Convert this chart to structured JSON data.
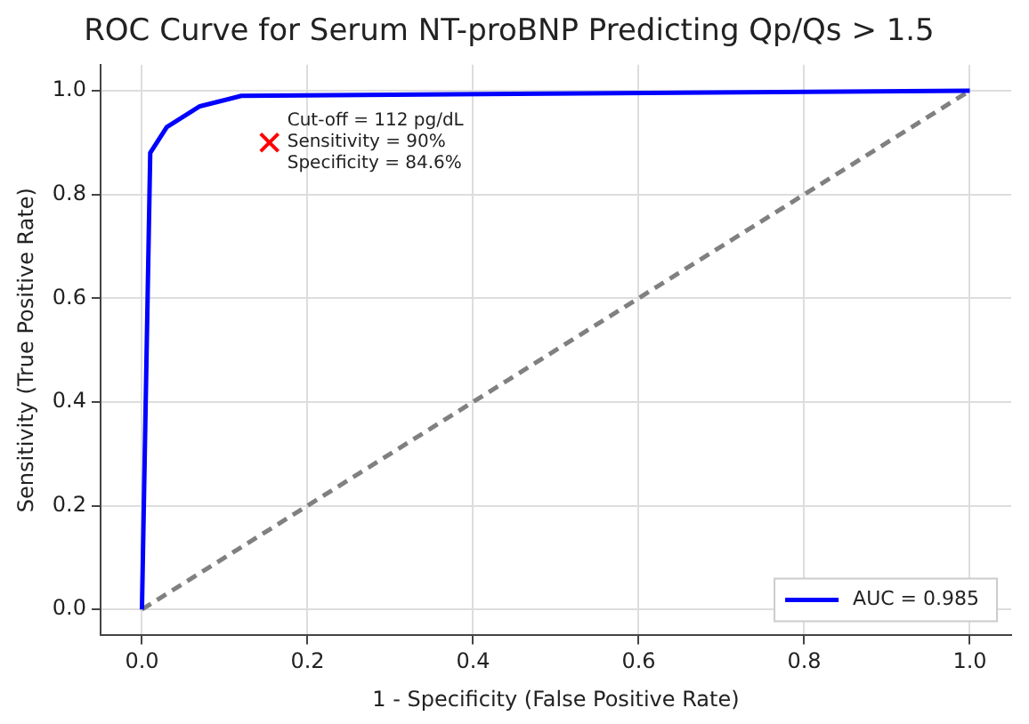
{
  "chart_data": {
    "type": "line",
    "title": "ROC Curve for Serum NT-proBNP Predicting Qp/Qs > 1.5",
    "xlabel": "1 - Specificity (False Positive Rate)",
    "ylabel": "Sensitivity (True Positive Rate)",
    "xlim": [
      -0.05,
      1.05
    ],
    "ylim": [
      -0.05,
      1.05
    ],
    "xticks": [
      {
        "value": 0,
        "label": "0.0"
      },
      0.2,
      0.4,
      0.6,
      0.8,
      {
        "value": 1,
        "label": "1.0"
      }
    ],
    "yticks": [
      {
        "value": 0,
        "label": "0.0"
      },
      0.2,
      0.4,
      0.6,
      0.8,
      {
        "value": 1,
        "label": "1.0"
      }
    ],
    "grid": true,
    "legend": "bottom right",
    "series": [
      {
        "name": "AUC = 0.985",
        "color": "#0000ff",
        "line_style": "solid",
        "marker": "none",
        "x": [
          0,
          0.01,
          0.03,
          0.07,
          0.12,
          1.0
        ],
        "values": [
          0,
          0.88,
          0.93,
          0.97,
          0.99,
          1.0
        ]
      },
      {
        "color": "#808080",
        "line_style": "dashed",
        "marker": "none",
        "x": [
          0,
          1
        ],
        "values": [
          0,
          1
        ]
      },
      {
        "type": "scatter",
        "color": "#ff0000",
        "marker": "cross",
        "x": [
          0.154
        ],
        "values": [
          0.9
        ]
      }
    ],
    "annotations": [
      {
        "text": "Cut-off = 112 pg/dL\nSensitivity = 90%\nSpecificity = 84.6%",
        "x": 0.154,
        "y": 0.9
      }
    ]
  }
}
